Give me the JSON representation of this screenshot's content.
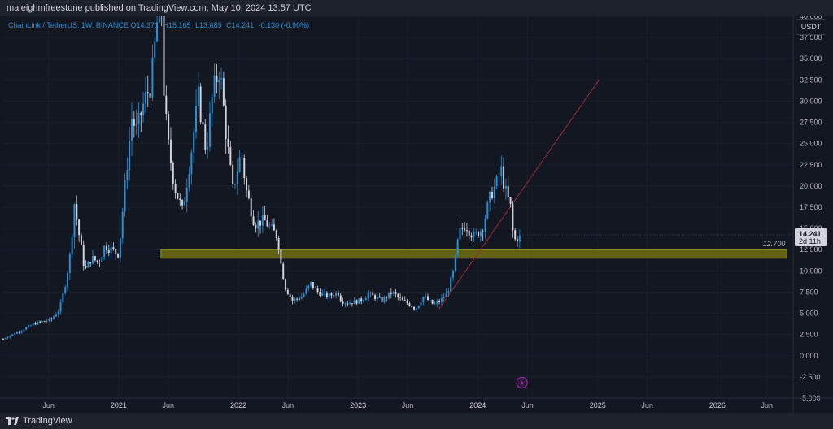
{
  "header": {
    "published_by": "maleighmfreestone published on TradingView.com, May 10, 2024 13:57 UTC"
  },
  "legend": {
    "symbol": "ChainLink / TetherUS, 1W, BINANCE",
    "open_label": "O",
    "open": "14.371",
    "high_label": "H",
    "high": "15.165",
    "low_label": "L",
    "low": "13.689",
    "close_label": "C",
    "close": "14.241",
    "change": "-0.130 (-0.90%)"
  },
  "toolbar": {
    "currency": "USDT"
  },
  "footer": {
    "brand": "TradingView"
  },
  "colors": {
    "background": "#131722",
    "bull": "#2b8fd6",
    "bear": "#d1d4dc",
    "zone": "#6b6b12",
    "trendline": "#9b2a3c",
    "price_tag": "#d1d4dc",
    "event_icon": "#9c27b0"
  },
  "chart_data": {
    "type": "candlestick",
    "title": "ChainLink / TetherUS, 1W, BINANCE",
    "y_axis": {
      "ticks": [
        "-5.000",
        "-2.500",
        "0.000",
        "2.500",
        "5.000",
        "7.500",
        "10.000",
        "12.500",
        "15.000",
        "17.500",
        "20.000",
        "22.500",
        "25.000",
        "27.500",
        "30.000",
        "32.500",
        "35.000",
        "37.500",
        "40.000"
      ],
      "range": [
        -5,
        40
      ],
      "position": "right"
    },
    "x_axis": {
      "labels": [
        {
          "text": "Jun",
          "date": "2020-06-01",
          "year": false
        },
        {
          "text": "2021",
          "date": "2021-01-01",
          "year": true
        },
        {
          "text": "Jun",
          "date": "2021-06-01",
          "year": false
        },
        {
          "text": "2022",
          "date": "2022-01-01",
          "year": true
        },
        {
          "text": "Jun",
          "date": "2022-06-01",
          "year": false
        },
        {
          "text": "2023",
          "date": "2023-01-01",
          "year": true
        },
        {
          "text": "Jun",
          "date": "2023-06-01",
          "year": false
        },
        {
          "text": "2024",
          "date": "2024-01-01",
          "year": true
        },
        {
          "text": "Jun",
          "date": "2024-06-01",
          "year": false
        },
        {
          "text": "2025",
          "date": "2025-01-01",
          "year": true
        },
        {
          "text": "Jun",
          "date": "2025-06-01",
          "year": false
        },
        {
          "text": "2026",
          "date": "2026-01-01",
          "year": true
        },
        {
          "text": "Jun",
          "date": "2026-06-01",
          "year": false
        }
      ],
      "range": [
        "2020-01-15",
        "2026-08-20"
      ]
    },
    "price_path": [
      [
        "2020-01-15",
        2.0
      ],
      [
        "2020-03-10",
        3.0
      ],
      [
        "2020-04-20",
        3.8
      ],
      [
        "2020-06-10",
        4.3
      ],
      [
        "2020-07-05",
        5.5
      ],
      [
        "2020-07-25",
        9.0
      ],
      [
        "2020-08-10",
        13.0
      ],
      [
        "2020-08-17",
        18.5
      ],
      [
        "2020-09-01",
        14.5
      ],
      [
        "2020-09-20",
        10.0
      ],
      [
        "2020-10-10",
        11.5
      ],
      [
        "2020-11-01",
        11.0
      ],
      [
        "2020-11-20",
        13.0
      ],
      [
        "2020-12-10",
        12.5
      ],
      [
        "2021-01-01",
        12.0
      ],
      [
        "2021-01-20",
        20.0
      ],
      [
        "2021-02-10",
        28.0
      ],
      [
        "2021-02-25",
        26.5
      ],
      [
        "2021-03-20",
        30.0
      ],
      [
        "2021-04-10",
        32.0
      ],
      [
        "2021-04-25",
        38.0
      ],
      [
        "2021-05-10",
        44.0
      ],
      [
        "2021-05-20",
        30.0
      ],
      [
        "2021-06-01",
        25.0
      ],
      [
        "2021-06-20",
        20.0
      ],
      [
        "2021-07-15",
        17.0
      ],
      [
        "2021-08-10",
        24.0
      ],
      [
        "2021-09-01",
        30.5
      ],
      [
        "2021-09-25",
        24.0
      ],
      [
        "2021-10-15",
        31.0
      ],
      [
        "2021-11-05",
        34.0
      ],
      [
        "2021-11-25",
        26.0
      ],
      [
        "2021-12-15",
        19.5
      ],
      [
        "2022-01-10",
        24.0
      ],
      [
        "2022-01-25",
        19.5
      ],
      [
        "2022-02-20",
        15.5
      ],
      [
        "2022-03-20",
        16.0
      ],
      [
        "2022-04-10",
        15.0
      ],
      [
        "2022-05-01",
        14.0
      ],
      [
        "2022-05-10",
        11.0
      ],
      [
        "2022-05-25",
        8.0
      ],
      [
        "2022-06-15",
        6.5
      ],
      [
        "2022-07-15",
        7.0
      ],
      [
        "2022-08-10",
        8.5
      ],
      [
        "2022-09-01",
        7.5
      ],
      [
        "2022-10-01",
        7.0
      ],
      [
        "2022-11-01",
        7.5
      ],
      [
        "2022-11-10",
        6.5
      ],
      [
        "2022-12-01",
        6.2
      ],
      [
        "2023-01-10",
        6.5
      ],
      [
        "2023-02-01",
        7.3
      ],
      [
        "2023-03-15",
        6.5
      ],
      [
        "2023-04-15",
        7.5
      ],
      [
        "2023-05-15",
        6.5
      ],
      [
        "2023-06-10",
        6.0
      ],
      [
        "2023-06-25",
        5.5
      ],
      [
        "2023-07-20",
        7.0
      ],
      [
        "2023-08-20",
        6.0
      ],
      [
        "2023-09-10",
        6.5
      ],
      [
        "2023-10-01",
        7.5
      ],
      [
        "2023-10-20",
        10.0
      ],
      [
        "2023-11-05",
        14.5
      ],
      [
        "2023-11-25",
        15.5
      ],
      [
        "2023-12-20",
        14.0
      ],
      [
        "2024-01-15",
        15.0
      ],
      [
        "2024-02-10",
        19.0
      ],
      [
        "2024-03-01",
        20.5
      ],
      [
        "2024-03-12",
        22.0
      ],
      [
        "2024-03-25",
        19.5
      ],
      [
        "2024-04-10",
        17.5
      ],
      [
        "2024-04-20",
        13.5
      ],
      [
        "2024-05-10",
        14.241
      ]
    ],
    "last_price": "14.241",
    "countdown": "2d 11h",
    "support_zone": {
      "label": "12.700",
      "low": 11.5,
      "high": 12.5,
      "from": "2021-05-10",
      "to": "2026-08-01"
    },
    "trendline": {
      "from": [
        "2023-09-05",
        5.5
      ],
      "to": [
        "2025-01-05",
        32.5
      ]
    },
    "event_marker": {
      "date": "2024-05-15",
      "icon": "lightning-icon"
    }
  }
}
